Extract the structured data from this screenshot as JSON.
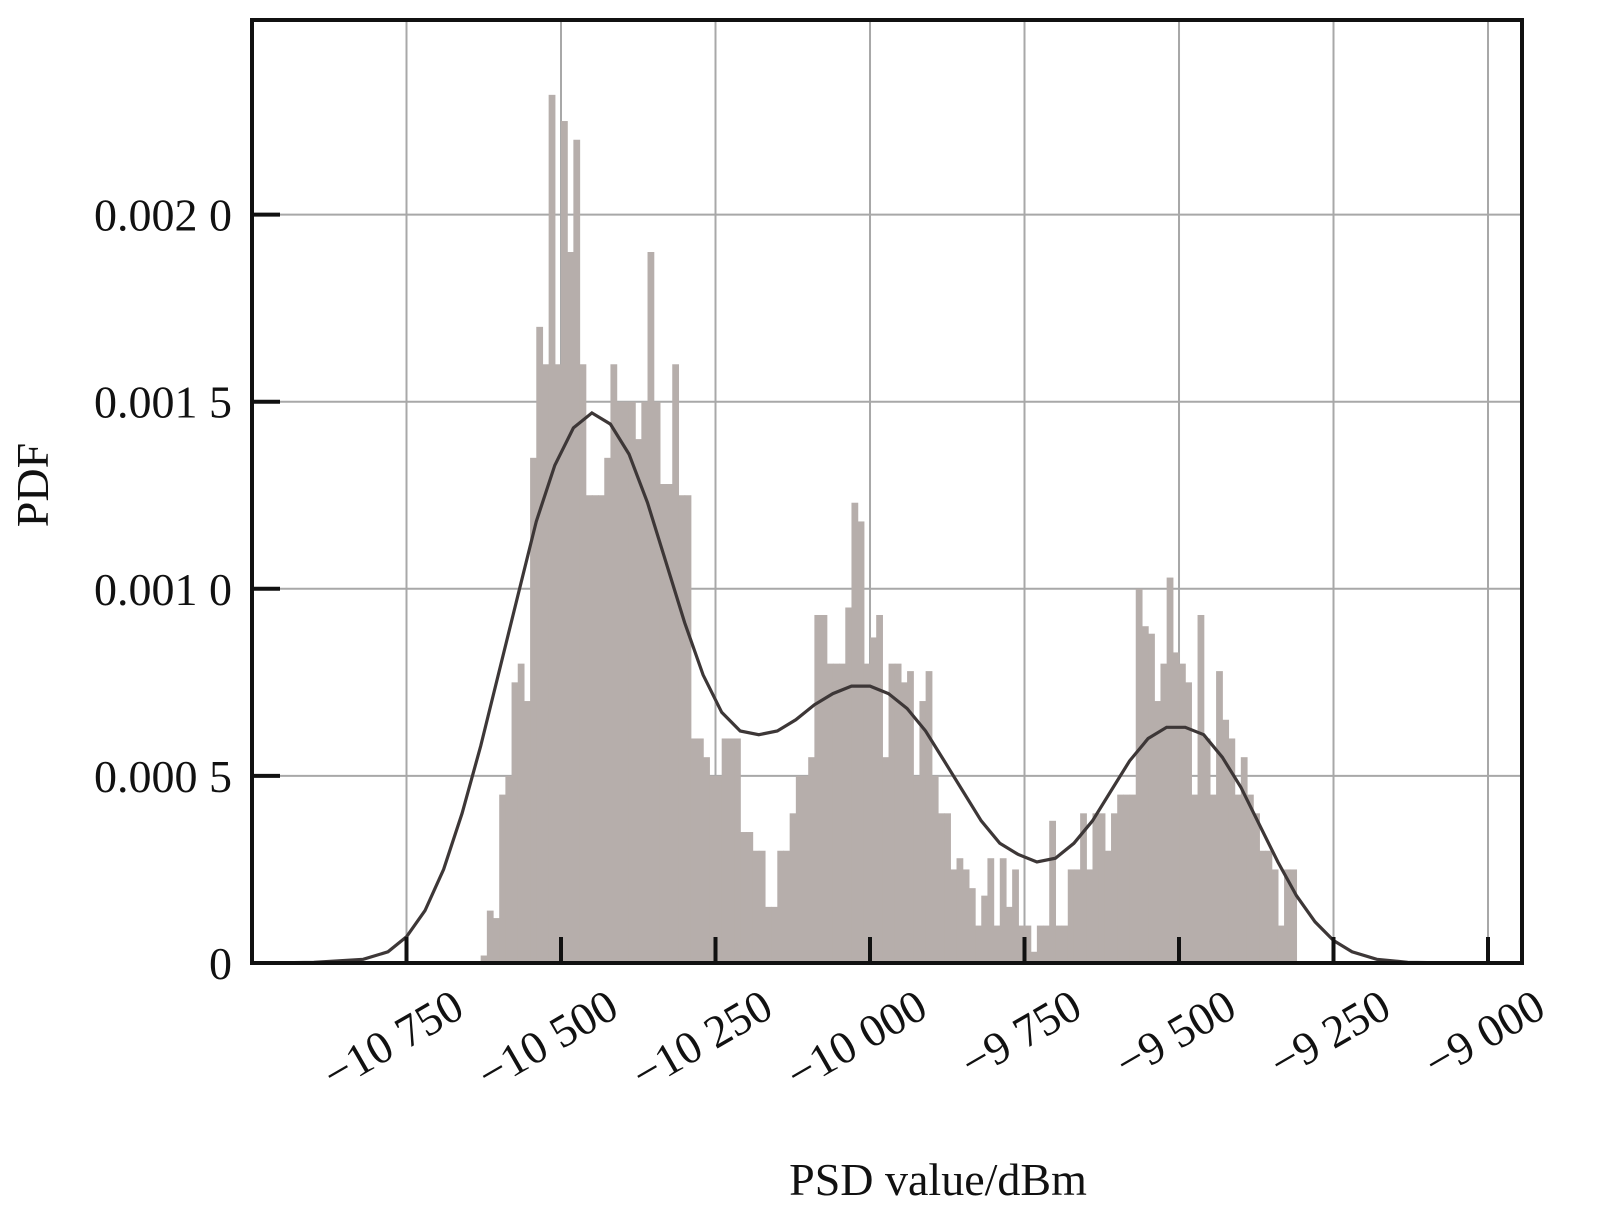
{
  "chart_data": {
    "type": "bar",
    "title": "",
    "xlabel": "PSD value/dBm",
    "ylabel": "PDF",
    "xlim": [
      -11000,
      -8945
    ],
    "ylim": [
      0,
      0.00252
    ],
    "grid": true,
    "legend": "none",
    "x_ticks": [
      {
        "value": -10750,
        "label": "−10 750"
      },
      {
        "value": -10500,
        "label": "−10 500"
      },
      {
        "value": -10250,
        "label": "−10 250"
      },
      {
        "value": -10000,
        "label": "−10 000"
      },
      {
        "value": -9750,
        "label": "−9 750"
      },
      {
        "value": -9500,
        "label": "−9 500"
      },
      {
        "value": -9250,
        "label": "−9 250"
      },
      {
        "value": -9000,
        "label": "−9 000"
      }
    ],
    "y_ticks": [
      {
        "value": 0,
        "label": "0"
      },
      {
        "value": 0.0005,
        "label": "0.000 5"
      },
      {
        "value": 0.001,
        "label": "0.001 0"
      },
      {
        "value": 0.0015,
        "label": "0.001 5"
      },
      {
        "value": 0.002,
        "label": "0.002 0"
      }
    ],
    "series": [
      {
        "type": "histogram",
        "color": "#b6aeab",
        "bin_width": 10,
        "x_start": -10630,
        "values": [
          2e-05,
          0.00014,
          0.00012,
          0.00045,
          0.0005,
          0.00075,
          0.0008,
          0.0007,
          0.00135,
          0.0017,
          0.0016,
          0.00232,
          0.0016,
          0.00225,
          0.0019,
          0.0022,
          0.0016,
          0.00125,
          0.00125,
          0.00125,
          0.00135,
          0.0016,
          0.0015,
          0.0015,
          0.0015,
          0.0014,
          0.0015,
          0.0019,
          0.0015,
          0.00128,
          0.00128,
          0.0016,
          0.00125,
          0.00125,
          0.0006,
          0.0006,
          0.00055,
          0.0005,
          0.0005,
          0.0006,
          0.0006,
          0.0006,
          0.00035,
          0.00035,
          0.0003,
          0.0003,
          0.00015,
          0.00015,
          0.0003,
          0.0003,
          0.0004,
          0.0005,
          0.0005,
          0.00055,
          0.00093,
          0.00093,
          0.0008,
          0.0008,
          0.0008,
          0.00095,
          0.00123,
          0.00118,
          0.0008,
          0.00087,
          0.00093,
          0.00055,
          0.0008,
          0.0008,
          0.00075,
          0.00078,
          0.0005,
          0.0007,
          0.00078,
          0.0005,
          0.0004,
          0.0004,
          0.00025,
          0.00028,
          0.00025,
          0.0002,
          0.0001,
          0.00018,
          0.00028,
          0.0001,
          0.00028,
          0.00015,
          0.00025,
          0.0001,
          0.0001,
          3e-05,
          0.0001,
          0.0001,
          0.00038,
          0.0001,
          0.0001,
          0.00025,
          0.00025,
          0.0004,
          0.00025,
          0.0004,
          0.0004,
          0.0003,
          0.0004,
          0.00045,
          0.00045,
          0.00045,
          0.001,
          0.0009,
          0.00088,
          0.0007,
          0.0008,
          0.00103,
          0.00083,
          0.0008,
          0.00075,
          0.00045,
          0.00093,
          0.0006,
          0.00045,
          0.00078,
          0.00065,
          0.0006,
          0.00045,
          0.00055,
          0.00045,
          0.0004,
          0.0003,
          0.0003,
          0.00025,
          0.0001,
          0.00025,
          0.00025
        ]
      },
      {
        "type": "line",
        "color": "#3d3737",
        "points": [
          [
            -10980,
            0.0
          ],
          [
            -10900,
            2e-06
          ],
          [
            -10820,
            1e-05
          ],
          [
            -10780,
            3e-05
          ],
          [
            -10750,
            7e-05
          ],
          [
            -10720,
            0.00014
          ],
          [
            -10690,
            0.00025
          ],
          [
            -10660,
            0.0004
          ],
          [
            -10630,
            0.00058
          ],
          [
            -10600,
            0.00078
          ],
          [
            -10570,
            0.00098
          ],
          [
            -10540,
            0.00118
          ],
          [
            -10510,
            0.00133
          ],
          [
            -10480,
            0.00143
          ],
          [
            -10450,
            0.00147
          ],
          [
            -10420,
            0.00144
          ],
          [
            -10390,
            0.00136
          ],
          [
            -10360,
            0.00123
          ],
          [
            -10330,
            0.00107
          ],
          [
            -10300,
            0.00091
          ],
          [
            -10270,
            0.00077
          ],
          [
            -10240,
            0.00067
          ],
          [
            -10210,
            0.00062
          ],
          [
            -10180,
            0.00061
          ],
          [
            -10150,
            0.00062
          ],
          [
            -10120,
            0.00065
          ],
          [
            -10090,
            0.00069
          ],
          [
            -10060,
            0.00072
          ],
          [
            -10030,
            0.00074
          ],
          [
            -10000,
            0.00074
          ],
          [
            -9970,
            0.00072
          ],
          [
            -9940,
            0.00068
          ],
          [
            -9910,
            0.00062
          ],
          [
            -9880,
            0.00054
          ],
          [
            -9850,
            0.00046
          ],
          [
            -9820,
            0.00038
          ],
          [
            -9790,
            0.00032
          ],
          [
            -9760,
            0.00029
          ],
          [
            -9730,
            0.00027
          ],
          [
            -9700,
            0.00028
          ],
          [
            -9670,
            0.00032
          ],
          [
            -9640,
            0.00038
          ],
          [
            -9610,
            0.00046
          ],
          [
            -9580,
            0.00054
          ],
          [
            -9550,
            0.0006
          ],
          [
            -9520,
            0.00063
          ],
          [
            -9490,
            0.00063
          ],
          [
            -9460,
            0.00061
          ],
          [
            -9430,
            0.00055
          ],
          [
            -9400,
            0.00047
          ],
          [
            -9370,
            0.00037
          ],
          [
            -9340,
            0.00027
          ],
          [
            -9310,
            0.00018
          ],
          [
            -9280,
            0.00011
          ],
          [
            -9250,
            6e-05
          ],
          [
            -9220,
            3e-05
          ],
          [
            -9180,
            1e-05
          ],
          [
            -9130,
            2e-06
          ],
          [
            -9050,
            0.0
          ],
          [
            -8960,
            0.0
          ]
        ]
      }
    ]
  }
}
